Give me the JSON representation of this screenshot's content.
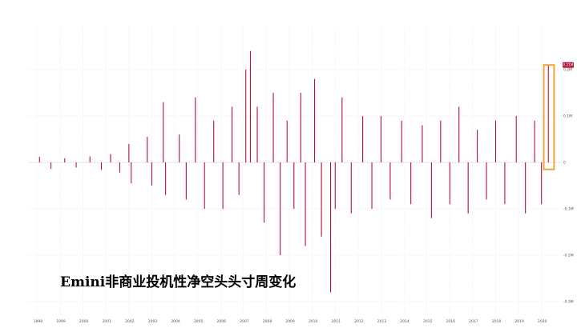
{
  "chart_data": {
    "type": "bar",
    "title": "Emini非商业投机性净空头头寸周变化",
    "x_tick_labels": [
      "1998",
      "1999",
      "2000",
      "2001",
      "2002",
      "2003",
      "2004",
      "2005",
      "2006",
      "2007",
      "2008",
      "2009",
      "2010",
      "2011",
      "2012",
      "2013",
      "2014",
      "2015",
      "2016",
      "2017",
      "2018",
      "2019",
      "2020"
    ],
    "y_tick_labels": [
      "0.2M",
      "0.1M",
      "0",
      "-0.1M",
      "-0.2M",
      "-0.3M"
    ],
    "ylim": [
      -0.32,
      0.25
    ],
    "grid": true,
    "highlight_label": "0.21M",
    "highlight_box": {
      "x_start": 2020.1,
      "x_end": 2020.55,
      "y_low": -0.015,
      "y_high": 0.21
    },
    "series": [
      {
        "values": [
          {
            "x": 1998.1,
            "y": 0.012
          },
          {
            "x": 1998.6,
            "y": -0.014
          },
          {
            "x": 1999.2,
            "y": 0.009
          },
          {
            "x": 1999.7,
            "y": -0.011
          },
          {
            "x": 2000.3,
            "y": 0.013
          },
          {
            "x": 2000.8,
            "y": -0.016
          },
          {
            "x": 2001.2,
            "y": 0.018
          },
          {
            "x": 2001.6,
            "y": -0.022
          },
          {
            "x": 2002.0,
            "y": 0.04
          },
          {
            "x": 2002.1,
            "y": -0.045
          },
          {
            "x": 2002.8,
            "y": 0.055
          },
          {
            "x": 2003.0,
            "y": -0.05
          },
          {
            "x": 2003.5,
            "y": 0.13
          },
          {
            "x": 2003.6,
            "y": -0.07
          },
          {
            "x": 2004.2,
            "y": 0.06
          },
          {
            "x": 2004.5,
            "y": -0.08
          },
          {
            "x": 2004.9,
            "y": 0.14
          },
          {
            "x": 2005.3,
            "y": -0.1
          },
          {
            "x": 2005.7,
            "y": 0.09
          },
          {
            "x": 2006.1,
            "y": -0.1
          },
          {
            "x": 2006.5,
            "y": 0.12
          },
          {
            "x": 2006.8,
            "y": -0.07
          },
          {
            "x": 2007.1,
            "y": 0.2
          },
          {
            "x": 2007.3,
            "y": 0.24
          },
          {
            "x": 2007.6,
            "y": 0.12
          },
          {
            "x": 2007.9,
            "y": -0.13
          },
          {
            "x": 2008.3,
            "y": 0.15
          },
          {
            "x": 2008.6,
            "y": -0.2
          },
          {
            "x": 2008.9,
            "y": 0.09
          },
          {
            "x": 2009.2,
            "y": -0.1
          },
          {
            "x": 2009.5,
            "y": 0.15
          },
          {
            "x": 2009.7,
            "y": -0.18
          },
          {
            "x": 2010.1,
            "y": 0.18
          },
          {
            "x": 2010.4,
            "y": -0.16
          },
          {
            "x": 2010.8,
            "y": -0.28
          },
          {
            "x": 2011.0,
            "y": -0.1
          },
          {
            "x": 2011.3,
            "y": 0.14
          },
          {
            "x": 2011.7,
            "y": -0.11
          },
          {
            "x": 2012.2,
            "y": 0.1
          },
          {
            "x": 2012.6,
            "y": -0.1
          },
          {
            "x": 2013.0,
            "y": 0.1
          },
          {
            "x": 2013.4,
            "y": -0.08
          },
          {
            "x": 2013.9,
            "y": 0.09
          },
          {
            "x": 2014.3,
            "y": -0.09
          },
          {
            "x": 2014.8,
            "y": 0.08
          },
          {
            "x": 2015.2,
            "y": -0.12
          },
          {
            "x": 2015.6,
            "y": 0.09
          },
          {
            "x": 2016.0,
            "y": -0.09
          },
          {
            "x": 2016.4,
            "y": 0.12
          },
          {
            "x": 2016.8,
            "y": -0.11
          },
          {
            "x": 2017.2,
            "y": 0.07
          },
          {
            "x": 2017.6,
            "y": -0.08
          },
          {
            "x": 2018.0,
            "y": 0.09
          },
          {
            "x": 2018.4,
            "y": -0.09
          },
          {
            "x": 2018.9,
            "y": 0.1
          },
          {
            "x": 2019.3,
            "y": -0.11
          },
          {
            "x": 2019.7,
            "y": 0.09
          },
          {
            "x": 2020.0,
            "y": -0.09
          },
          {
            "x": 2020.3,
            "y": 0.21
          }
        ]
      }
    ]
  }
}
